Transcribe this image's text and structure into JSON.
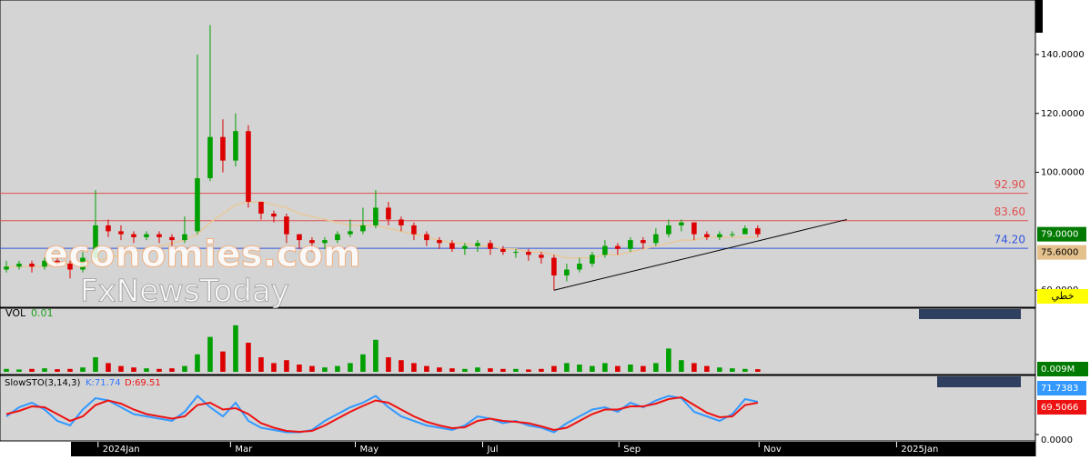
{
  "chart_data": {
    "type": "candlestick",
    "open": [
      67,
      68,
      69,
      68,
      70,
      69,
      67,
      71,
      82,
      80,
      79,
      78,
      79,
      78,
      77,
      80,
      98,
      112,
      104,
      114,
      90,
      86,
      85,
      79,
      77,
      76,
      77,
      79,
      80,
      82,
      88,
      84,
      82,
      79,
      77,
      76,
      74,
      75,
      76,
      74,
      73,
      73,
      72,
      71,
      65,
      67,
      69,
      72,
      75,
      74,
      77,
      76,
      79,
      82,
      83,
      79,
      78,
      79,
      79,
      81
    ],
    "high": [
      70,
      70,
      70,
      71,
      71,
      70,
      73,
      94,
      84,
      82,
      80,
      80,
      80,
      79,
      85,
      140,
      150,
      118,
      120,
      116,
      90,
      87,
      86,
      79,
      78,
      78,
      80,
      84,
      88,
      94,
      90,
      85,
      83,
      80,
      78,
      77,
      76,
      77,
      77,
      75,
      74,
      74,
      73,
      72,
      69,
      71,
      73,
      77,
      76,
      78,
      78,
      81,
      84,
      84,
      83,
      80,
      80,
      80,
      82,
      82
    ],
    "low": [
      66,
      67,
      66,
      67,
      68,
      64,
      66,
      70,
      78,
      77,
      76,
      77,
      76,
      75,
      76,
      79,
      97,
      100,
      102,
      88,
      84,
      83,
      76,
      74,
      73,
      74,
      76,
      78,
      79,
      81,
      82,
      80,
      77,
      75,
      74,
      73,
      72,
      73,
      72,
      72,
      71,
      70,
      69,
      60,
      63,
      66,
      68,
      71,
      72,
      73,
      74,
      75,
      78,
      80,
      77,
      77,
      77,
      78,
      79,
      78
    ],
    "close": [
      68,
      69,
      68,
      70,
      69,
      67,
      71,
      82,
      80,
      79,
      78,
      79,
      78,
      77,
      79,
      98,
      112,
      104,
      114,
      90,
      86,
      85,
      79,
      77,
      76,
      77,
      79,
      80,
      82,
      88,
      84,
      82,
      79,
      77,
      76,
      74,
      75,
      76,
      74,
      73,
      73,
      72,
      71,
      65,
      67,
      69,
      72,
      75,
      74,
      77,
      76,
      79,
      82,
      83,
      79,
      78,
      79,
      79,
      81,
      79
    ],
    "up_color": "#00a000",
    "down_color": "#dd0000",
    "ma": {
      "color": "#e8c89a",
      "values": [
        68,
        68,
        68,
        68,
        69,
        69,
        69,
        70,
        71,
        72,
        73,
        74,
        75,
        76,
        77,
        79,
        83,
        86,
        89,
        90,
        90,
        89,
        88,
        86,
        85,
        84,
        83,
        82,
        82,
        82,
        81,
        80,
        79,
        78,
        77,
        76,
        76,
        75,
        75,
        74,
        74,
        73,
        73,
        72,
        71,
        71,
        71,
        72,
        72,
        73,
        74,
        75,
        76,
        77,
        77,
        78,
        78,
        78,
        78,
        78
      ]
    },
    "xlim": [
      -0.5,
      80.8
    ],
    "ylim": [
      54.2,
      158.5
    ],
    "yticks": [
      {
        "value": 140,
        "label": "140.0000"
      },
      {
        "value": 120,
        "label": "120.0000"
      },
      {
        "value": 100,
        "label": "100.0000"
      },
      {
        "value": 60,
        "label": "60.0000"
      }
    ],
    "xticks": [
      {
        "value": 7.2,
        "label": "2024Jan"
      },
      {
        "value": 17.6,
        "label": "Mar"
      },
      {
        "value": 27.4,
        "label": "May"
      },
      {
        "value": 37.4,
        "label": "Jul"
      },
      {
        "value": 48.1,
        "label": "Sep"
      },
      {
        "value": 59.1,
        "label": "Nov"
      },
      {
        "value": 69.9,
        "label": "2025Jan"
      }
    ],
    "levels": [
      {
        "value": 92.9,
        "label": "92.90",
        "color": "#e05050"
      },
      {
        "value": 83.6,
        "label": "83.60",
        "color": "#e05050"
      },
      {
        "value": 74.2,
        "label": "74.20",
        "color": "#3355dd"
      }
    ],
    "trendline": {
      "x": [
        43,
        66
      ],
      "y": [
        60,
        84
      ]
    },
    "price_boxes": [
      {
        "value": 79,
        "label": "79.0000",
        "color": "#007a00",
        "text_color": "#ffffff"
      },
      {
        "value": 75.6,
        "label": "75.6000",
        "color": "#e3c08c",
        "text_color": "#000000"
      }
    ],
    "scale_mode": "خطي",
    "watermark": [
      "economies.com",
      "FxNewsToday"
    ],
    "volume": {
      "label": "VOL",
      "value_label": "0.01",
      "last_label": "0.009M",
      "ylim": [
        0,
        0.2
      ],
      "values": [
        0.01,
        0.008,
        0.01,
        0.012,
        0.009,
        0.01,
        0.015,
        0.05,
        0.03,
        0.02,
        0.015,
        0.012,
        0.01,
        0.012,
        0.02,
        0.06,
        0.12,
        0.07,
        0.16,
        0.1,
        0.05,
        0.03,
        0.04,
        0.025,
        0.02,
        0.015,
        0.02,
        0.03,
        0.06,
        0.11,
        0.05,
        0.04,
        0.03,
        0.02,
        0.015,
        0.012,
        0.01,
        0.015,
        0.012,
        0.01,
        0.01,
        0.008,
        0.01,
        0.02,
        0.03,
        0.025,
        0.02,
        0.03,
        0.02,
        0.025,
        0.02,
        0.03,
        0.08,
        0.04,
        0.03,
        0.02,
        0.015,
        0.012,
        0.01,
        0.009
      ]
    },
    "stoch": {
      "title": "SlowSTO(3,14,3)",
      "k_label": "K:71.74",
      "d_label": "D:69.51",
      "ylim": [
        0,
        100
      ],
      "yticks": [
        {
          "value": 0,
          "label": "0.0000"
        }
      ],
      "k": {
        "color": "#3399ff",
        "box": "71.7383",
        "values": [
          40,
          60,
          70,
          55,
          30,
          20,
          55,
          80,
          75,
          60,
          45,
          40,
          35,
          30,
          50,
          85,
          60,
          40,
          70,
          30,
          15,
          10,
          5,
          5,
          10,
          30,
          45,
          60,
          70,
          85,
          60,
          40,
          30,
          20,
          15,
          10,
          20,
          40,
          35,
          25,
          30,
          20,
          15,
          5,
          25,
          40,
          55,
          60,
          50,
          70,
          60,
          75,
          85,
          80,
          50,
          40,
          30,
          45,
          78,
          72
        ]
      },
      "d": {
        "color": "#ee1111",
        "box": "69.5066",
        "values": [
          45,
          52,
          62,
          60,
          45,
          30,
          40,
          65,
          75,
          68,
          55,
          45,
          40,
          35,
          40,
          65,
          70,
          55,
          58,
          45,
          25,
          15,
          8,
          6,
          8,
          20,
          35,
          50,
          63,
          75,
          70,
          55,
          40,
          28,
          20,
          14,
          16,
          30,
          35,
          30,
          28,
          25,
          18,
          10,
          15,
          30,
          45,
          55,
          55,
          62,
          62,
          68,
          78,
          82,
          65,
          48,
          38,
          40,
          65,
          70
        ]
      }
    }
  }
}
